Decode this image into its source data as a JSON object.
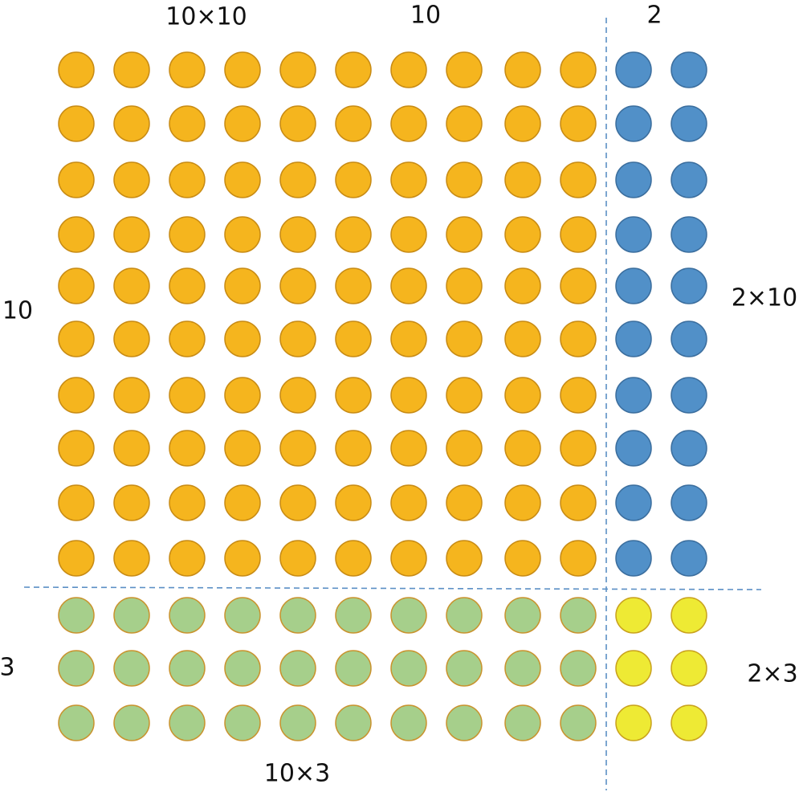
{
  "labels": [
    "10×10",
    "10",
    "2",
    "10",
    "2×10",
    "3",
    "2×3",
    "10×3"
  ]
}
